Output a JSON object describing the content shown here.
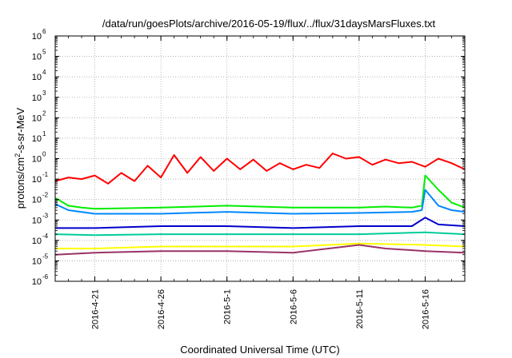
{
  "chart_data": {
    "type": "line",
    "title": "/data/run/goesPlots/archive/2016-05-19/flux/../flux/31daysMarsFluxes.txt",
    "xlabel": "Coordinated Universal Time (UTC)",
    "ylabel": {
      "prefix": "protons/cm",
      "sup": "2",
      "suffix": "-s-sr-MeV"
    },
    "y_scale": "log",
    "ylim": [
      1e-06,
      1000000.0
    ],
    "y_ticks": [
      {
        "value": 1e-06,
        "base": "10",
        "exp": "-6"
      },
      {
        "value": 1e-05,
        "base": "10",
        "exp": "-5"
      },
      {
        "value": 0.0001,
        "base": "10",
        "exp": "-4"
      },
      {
        "value": 0.001,
        "base": "10",
        "exp": "-3"
      },
      {
        "value": 0.01,
        "base": "10",
        "exp": "-2"
      },
      {
        "value": 0.1,
        "base": "10",
        "exp": "-1"
      },
      {
        "value": 1.0,
        "base": "10",
        "exp": "0"
      },
      {
        "value": 10.0,
        "base": "10",
        "exp": "1"
      },
      {
        "value": 100.0,
        "base": "10",
        "exp": "2"
      },
      {
        "value": 1000.0,
        "base": "10",
        "exp": "3"
      },
      {
        "value": 10000.0,
        "base": "10",
        "exp": "4"
      },
      {
        "value": 100000.0,
        "base": "10",
        "exp": "5"
      },
      {
        "value": 1000000.0,
        "base": "10",
        "exp": "6"
      }
    ],
    "xlim": [
      "2016-04-18",
      "2016-05-19"
    ],
    "x_ticks": [
      "2016-4-21",
      "2016-4-26",
      "2016-5-1",
      "2016-5-6",
      "2016-5-11",
      "2016-5-16"
    ],
    "grid": true,
    "series": [
      {
        "color": "#ff0000",
        "points": [
          [
            "2016-04-18",
            0.08
          ],
          [
            "2016-04-19",
            0.12
          ],
          [
            "2016-04-20",
            0.1
          ],
          [
            "2016-04-21",
            0.15
          ],
          [
            "2016-04-22",
            0.06
          ],
          [
            "2016-04-23",
            0.2
          ],
          [
            "2016-04-24",
            0.08
          ],
          [
            "2016-04-25",
            0.45
          ],
          [
            "2016-04-26",
            0.12
          ],
          [
            "2016-04-27",
            1.5
          ],
          [
            "2016-04-28",
            0.2
          ],
          [
            "2016-04-29",
            1.2
          ],
          [
            "2016-04-30",
            0.25
          ],
          [
            "2016-05-01",
            1.0
          ],
          [
            "2016-05-02",
            0.3
          ],
          [
            "2016-05-03",
            0.9
          ],
          [
            "2016-05-04",
            0.25
          ],
          [
            "2016-05-05",
            0.6
          ],
          [
            "2016-05-06",
            0.3
          ],
          [
            "2016-05-07",
            0.5
          ],
          [
            "2016-05-08",
            0.35
          ],
          [
            "2016-05-09",
            1.8
          ],
          [
            "2016-05-10",
            1.0
          ],
          [
            "2016-05-11",
            1.2
          ],
          [
            "2016-05-12",
            0.5
          ],
          [
            "2016-05-13",
            0.9
          ],
          [
            "2016-05-14",
            0.6
          ],
          [
            "2016-05-15",
            0.7
          ],
          [
            "2016-05-16",
            0.4
          ],
          [
            "2016-05-17",
            1.0
          ],
          [
            "2016-05-18",
            0.6
          ],
          [
            "2016-05-19",
            0.3
          ]
        ]
      },
      {
        "color": "#00ee00",
        "points": [
          [
            "2016-04-18",
            0.012
          ],
          [
            "2016-04-19",
            0.005
          ],
          [
            "2016-04-20",
            0.004
          ],
          [
            "2016-04-21",
            0.0035
          ],
          [
            "2016-04-26",
            0.004
          ],
          [
            "2016-05-01",
            0.005
          ],
          [
            "2016-05-06",
            0.004
          ],
          [
            "2016-05-11",
            0.004
          ],
          [
            "2016-05-13",
            0.0045
          ],
          [
            "2016-05-15",
            0.004
          ],
          [
            "2016-05-15T18",
            0.005
          ],
          [
            "2016-05-16",
            0.15
          ],
          [
            "2016-05-17",
            0.03
          ],
          [
            "2016-05-18",
            0.007
          ],
          [
            "2016-05-19",
            0.004
          ]
        ]
      },
      {
        "color": "#0088ff",
        "points": [
          [
            "2016-04-18",
            0.006
          ],
          [
            "2016-04-19",
            0.003
          ],
          [
            "2016-04-21",
            0.002
          ],
          [
            "2016-04-26",
            0.002
          ],
          [
            "2016-05-01",
            0.0025
          ],
          [
            "2016-05-06",
            0.002
          ],
          [
            "2016-05-11",
            0.0022
          ],
          [
            "2016-05-15",
            0.0025
          ],
          [
            "2016-05-15T18",
            0.003
          ],
          [
            "2016-05-16",
            0.03
          ],
          [
            "2016-05-17",
            0.005
          ],
          [
            "2016-05-18",
            0.003
          ],
          [
            "2016-05-19",
            0.0025
          ]
        ]
      },
      {
        "color": "#0000cc",
        "points": [
          [
            "2016-04-18",
            0.0004
          ],
          [
            "2016-04-21",
            0.0004
          ],
          [
            "2016-04-26",
            0.0005
          ],
          [
            "2016-05-01",
            0.0005
          ],
          [
            "2016-05-06",
            0.0004
          ],
          [
            "2016-05-11",
            0.0005
          ],
          [
            "2016-05-15",
            0.0005
          ],
          [
            "2016-05-16",
            0.0013
          ],
          [
            "2016-05-17",
            0.0006
          ],
          [
            "2016-05-19",
            0.0005
          ]
        ]
      },
      {
        "color": "#00cc99",
        "points": [
          [
            "2016-04-18",
            0.0002
          ],
          [
            "2016-04-21",
            0.00018
          ],
          [
            "2016-04-26",
            0.0002
          ],
          [
            "2016-05-01",
            0.0002
          ],
          [
            "2016-05-06",
            0.0002
          ],
          [
            "2016-05-11",
            0.0002
          ],
          [
            "2016-05-16",
            0.00025
          ],
          [
            "2016-05-19",
            0.0002
          ]
        ]
      },
      {
        "color": "#ffff00",
        "points": [
          [
            "2016-04-18",
            4e-05
          ],
          [
            "2016-04-21",
            4e-05
          ],
          [
            "2016-04-26",
            5e-05
          ],
          [
            "2016-05-01",
            5e-05
          ],
          [
            "2016-05-06",
            5e-05
          ],
          [
            "2016-05-11",
            7e-05
          ],
          [
            "2016-05-16",
            6e-05
          ],
          [
            "2016-05-19",
            5e-05
          ]
        ]
      },
      {
        "color": "#993366",
        "points": [
          [
            "2016-04-18",
            2e-05
          ],
          [
            "2016-04-21",
            2.5e-05
          ],
          [
            "2016-04-26",
            3e-05
          ],
          [
            "2016-05-01",
            3e-05
          ],
          [
            "2016-05-06",
            2.5e-05
          ],
          [
            "2016-05-11",
            6e-05
          ],
          [
            "2016-05-13",
            4e-05
          ],
          [
            "2016-05-16",
            3e-05
          ],
          [
            "2016-05-19",
            2.5e-05
          ]
        ]
      }
    ]
  }
}
